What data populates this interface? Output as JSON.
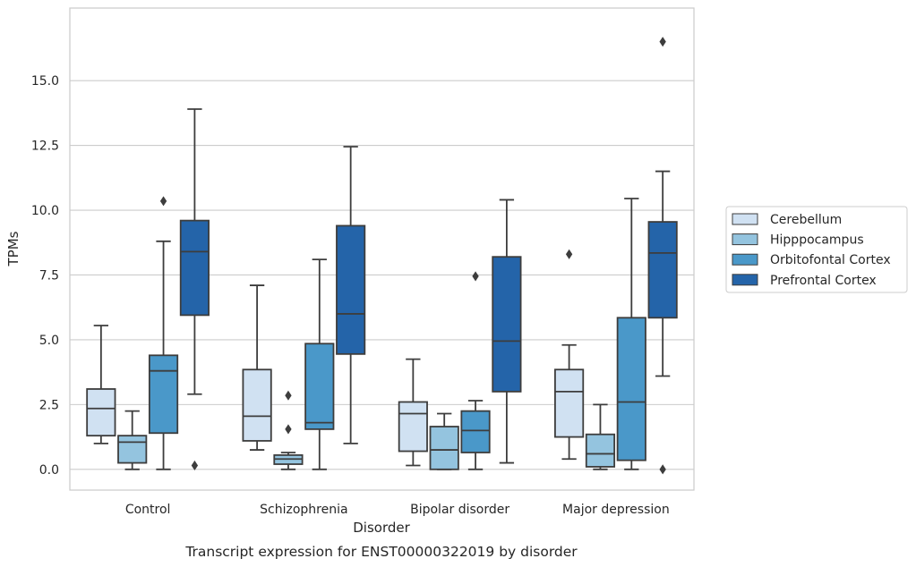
{
  "chart_data": {
    "type": "box",
    "title": "Transcript expression for ENST00000322019 by disorder",
    "xlabel": "Disorder",
    "ylabel": "TPMs",
    "ylim": [
      -0.8,
      17.8
    ],
    "yticks": [
      "0.0",
      "2.5",
      "5.0",
      "7.5",
      "10.0",
      "12.5",
      "15.0"
    ],
    "ytick_values": [
      0,
      2.5,
      5,
      7.5,
      10,
      12.5,
      15
    ],
    "grid": "horizontal",
    "legend_position": "right",
    "categories": [
      "Control",
      "Schizophrenia",
      "Bipolar disorder",
      "Major depression"
    ],
    "series": [
      {
        "name": "Cerebellum",
        "color": "#d0e1f2",
        "boxes": [
          {
            "whislo": 1.0,
            "q1": 1.3,
            "med": 2.35,
            "q3": 3.1,
            "whishi": 5.55,
            "fliers": []
          },
          {
            "whislo": 0.75,
            "q1": 1.1,
            "med": 2.05,
            "q3": 3.85,
            "whishi": 7.1,
            "fliers": []
          },
          {
            "whislo": 0.15,
            "q1": 0.7,
            "med": 2.15,
            "q3": 2.6,
            "whishi": 4.25,
            "fliers": []
          },
          {
            "whislo": 0.4,
            "q1": 1.25,
            "med": 3.0,
            "q3": 3.85,
            "whishi": 4.8,
            "fliers": [
              8.3
            ]
          }
        ]
      },
      {
        "name": "Hipppocampus",
        "color": "#94c4df",
        "boxes": [
          {
            "whislo": 0.0,
            "q1": 0.25,
            "med": 1.05,
            "q3": 1.3,
            "whishi": 2.25,
            "fliers": []
          },
          {
            "whislo": 0.0,
            "q1": 0.2,
            "med": 0.4,
            "q3": 0.55,
            "whishi": 0.65,
            "fliers": [
              2.85,
              1.55
            ]
          },
          {
            "whislo": 0.0,
            "q1": 0.0,
            "med": 0.75,
            "q3": 1.65,
            "whishi": 2.15,
            "fliers": []
          },
          {
            "whislo": 0.0,
            "q1": 0.1,
            "med": 0.6,
            "q3": 1.35,
            "whishi": 2.5,
            "fliers": []
          }
        ]
      },
      {
        "name": "Orbitofontal Cortex",
        "color": "#4a98c9",
        "boxes": [
          {
            "whislo": 0.0,
            "q1": 1.4,
            "med": 3.8,
            "q3": 4.4,
            "whishi": 8.8,
            "fliers": [
              10.35
            ]
          },
          {
            "whislo": 0.0,
            "q1": 1.55,
            "med": 1.8,
            "q3": 4.85,
            "whishi": 8.1,
            "fliers": []
          },
          {
            "whislo": 0.0,
            "q1": 0.65,
            "med": 1.5,
            "q3": 2.25,
            "whishi": 2.65,
            "fliers": [
              7.45
            ]
          },
          {
            "whislo": 0.0,
            "q1": 0.35,
            "med": 2.6,
            "q3": 5.85,
            "whishi": 10.45,
            "fliers": []
          }
        ]
      },
      {
        "name": "Prefrontal Cortex",
        "color": "#2464a9",
        "boxes": [
          {
            "whislo": 2.9,
            "q1": 5.95,
            "med": 8.4,
            "q3": 9.6,
            "whishi": 13.9,
            "fliers": [
              0.15
            ]
          },
          {
            "whislo": 1.0,
            "q1": 4.45,
            "med": 6.0,
            "q3": 9.4,
            "whishi": 12.45,
            "fliers": []
          },
          {
            "whislo": 0.25,
            "q1": 3.0,
            "med": 4.95,
            "q3": 8.2,
            "whishi": 10.4,
            "fliers": []
          },
          {
            "whislo": 3.6,
            "q1": 5.85,
            "med": 8.35,
            "q3": 9.55,
            "whishi": 11.5,
            "fliers": [
              16.5,
              0.0
            ]
          }
        ]
      }
    ]
  }
}
